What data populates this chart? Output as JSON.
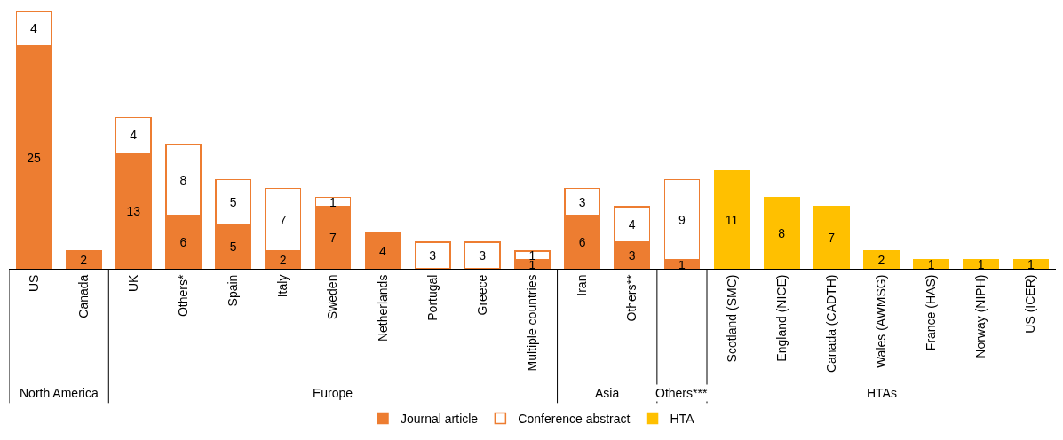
{
  "chart_data": {
    "type": "bar",
    "stacked": true,
    "data_labels": true,
    "legend": "bottom",
    "categories": [
      "US",
      "Canada",
      "UK",
      "Others*",
      "Spain",
      "Italy",
      "Sweden",
      "Netherlands",
      "Portugal",
      "Greece",
      "Multiple countries",
      "Iran",
      "Others**",
      null,
      "Scotland (SMC)",
      "England (NICE)",
      "Canada (CADTH)",
      "Wales (AWMSG)",
      "France (HAS)",
      "Norway (NIPH)",
      "US (ICER)"
    ],
    "series": [
      {
        "name": "Journal article",
        "color": "#ed7d31",
        "values": [
          25,
          2,
          13,
          6,
          5,
          2,
          7,
          4,
          null,
          null,
          1,
          6,
          3,
          1,
          null,
          null,
          null,
          null,
          null,
          null,
          null
        ]
      },
      {
        "name": "Conference abstract",
        "color": "#ffffff",
        "values": [
          4,
          null,
          4,
          8,
          5,
          7,
          1,
          null,
          3,
          3,
          1,
          3,
          4,
          9,
          null,
          null,
          null,
          null,
          null,
          null,
          null
        ]
      },
      {
        "name": "HTA",
        "color": "#ffc000",
        "values": [
          null,
          null,
          null,
          null,
          null,
          null,
          null,
          null,
          null,
          null,
          null,
          null,
          null,
          null,
          11,
          8,
          7,
          2,
          1,
          1,
          1
        ]
      }
    ],
    "annotations": [
      "North America",
      "Europe",
      "Asia",
      "Others***",
      "HTAs"
    ]
  }
}
